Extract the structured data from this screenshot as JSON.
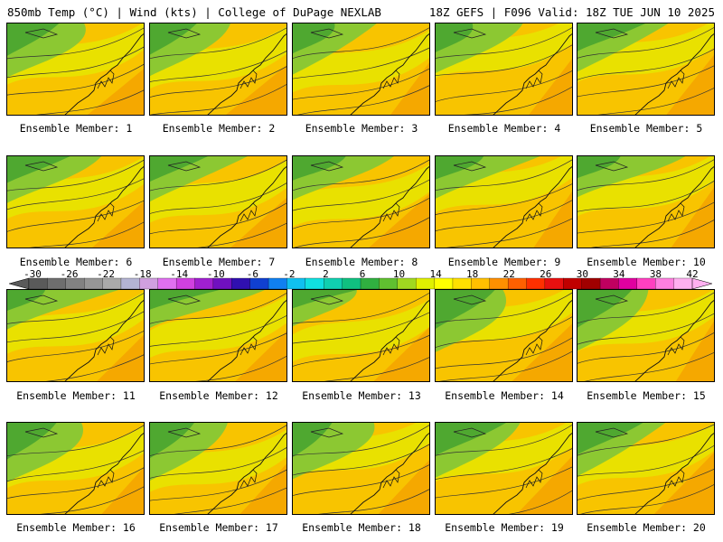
{
  "header": {
    "left": "850mb Temp (°C) | Wind (kts) | College of DuPage NEXLAB",
    "right": "18Z GEFS | F096 Valid: 18Z TUE JUN 10 2025"
  },
  "panels": [
    {
      "label": "Ensemble Member: 1"
    },
    {
      "label": "Ensemble Member: 2"
    },
    {
      "label": "Ensemble Member: 3"
    },
    {
      "label": "Ensemble Member: 4"
    },
    {
      "label": "Ensemble Member: 5"
    },
    {
      "label": "Ensemble Member: 6"
    },
    {
      "label": "Ensemble Member: 7"
    },
    {
      "label": "Ensemble Member: 8"
    },
    {
      "label": "Ensemble Member: 9"
    },
    {
      "label": "Ensemble Member: 10"
    },
    {
      "label": "Ensemble Member: 11"
    },
    {
      "label": "Ensemble Member: 12"
    },
    {
      "label": "Ensemble Member: 13"
    },
    {
      "label": "Ensemble Member: 14"
    },
    {
      "label": "Ensemble Member: 15"
    },
    {
      "label": "Ensemble Member: 16"
    },
    {
      "label": "Ensemble Member: 17"
    },
    {
      "label": "Ensemble Member: 18"
    },
    {
      "label": "Ensemble Member: 19"
    },
    {
      "label": "Ensemble Member: 20"
    }
  ],
  "colorbar": {
    "ticks": [
      "-30",
      "-26",
      "-22",
      "-18",
      "-14",
      "-10",
      "-6",
      "-2",
      "2",
      "6",
      "10",
      "14",
      "18",
      "22",
      "26",
      "30",
      "34",
      "38",
      "42"
    ],
    "colors": [
      "#5a5a5a",
      "#6e6e6e",
      "#828282",
      "#969696",
      "#aaaaaa",
      "#b4b4d4",
      "#d0a0e0",
      "#e070f0",
      "#d040e0",
      "#a020d0",
      "#7010c0",
      "#3010b0",
      "#1040d0",
      "#1080f0",
      "#10c0f0",
      "#10e0e0",
      "#10d0b0",
      "#10c080",
      "#30b040",
      "#60c030",
      "#a0d820",
      "#e0f000",
      "#ffff00",
      "#ffe000",
      "#ffc000",
      "#ff9000",
      "#ff6000",
      "#ff3000",
      "#e81010",
      "#c00000",
      "#a00000",
      "#c00060",
      "#e000a0",
      "#ff40c0",
      "#ff80e0",
      "#ffb0f0"
    ]
  }
}
